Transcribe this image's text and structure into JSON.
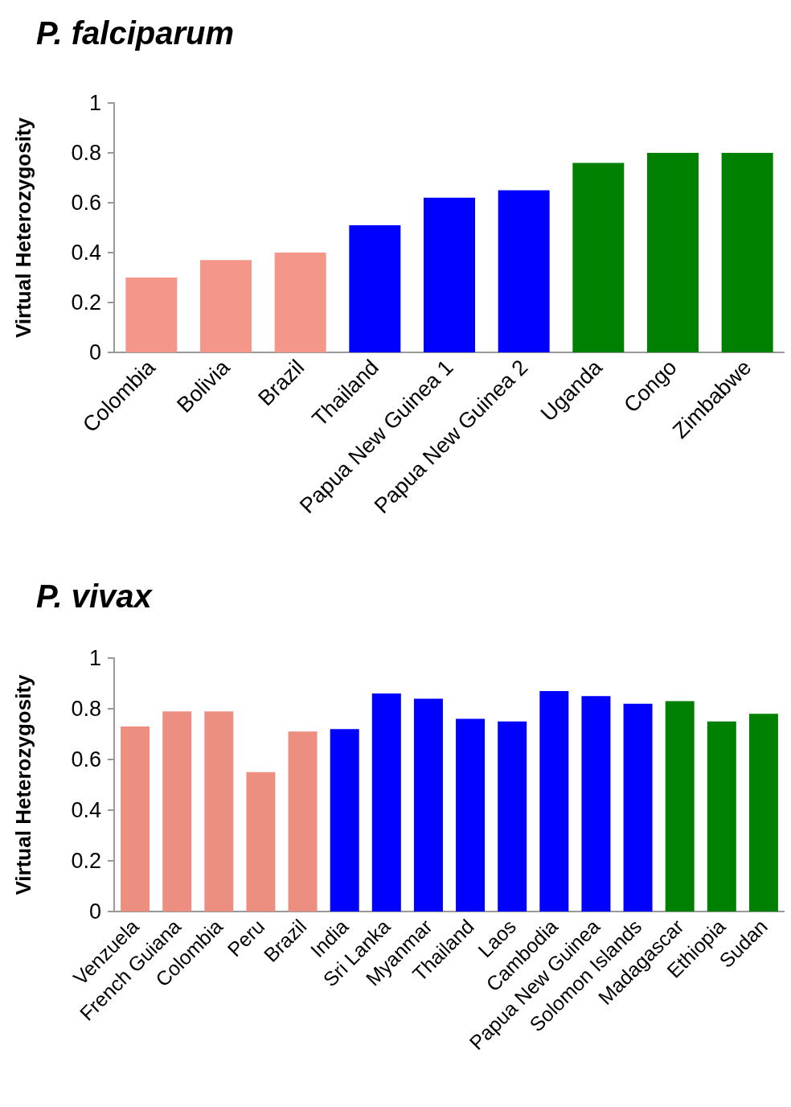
{
  "chart_data": [
    {
      "type": "bar",
      "title": "P. falciparum",
      "ylabel": "Virtual Heterozygosity",
      "categories": [
        "Colombia",
        "Bolivia",
        "Brazil",
        "Thailand",
        "Papua New Guinea 1",
        "Papua New Guinea 2",
        "Uganda",
        "Congo",
        "Zimbabwe"
      ],
      "values": [
        0.3,
        0.37,
        0.4,
        0.51,
        0.62,
        0.65,
        0.76,
        0.8,
        0.8
      ],
      "colors": [
        "#f4978a",
        "#f4978a",
        "#f4978a",
        "#0000ff",
        "#0000ff",
        "#0000ff",
        "#008000",
        "#008000",
        "#008000"
      ],
      "ylim": [
        0,
        1
      ],
      "yticks": [
        0,
        0.2,
        0.4,
        0.6,
        0.8,
        1
      ]
    },
    {
      "type": "bar",
      "title": "P. vivax",
      "ylabel": "Virtual Heterozygosity",
      "categories": [
        "Venzuela",
        "French Guiana",
        "Colombia",
        "Peru",
        "Brazil",
        "India",
        "Sri Lanka",
        "Myanmar",
        "Thailand",
        "Laos",
        "Cambodia",
        "Papua New Guinea",
        "Solomon Islands",
        "Madagascar",
        "Ethiopia",
        "Sudan"
      ],
      "values": [
        0.73,
        0.79,
        0.79,
        0.55,
        0.71,
        0.72,
        0.86,
        0.84,
        0.76,
        0.75,
        0.87,
        0.85,
        0.82,
        0.83,
        0.75,
        0.78
      ],
      "colors": [
        "#ec8f80",
        "#ec8f80",
        "#ec8f80",
        "#ec8f80",
        "#ec8f80",
        "#0000ff",
        "#0000ff",
        "#0000ff",
        "#0000ff",
        "#0000ff",
        "#0000ff",
        "#0000ff",
        "#0000ff",
        "#008000",
        "#008000",
        "#008000"
      ],
      "ylim": [
        0,
        1
      ],
      "yticks": [
        0,
        0.2,
        0.4,
        0.6,
        0.8,
        1
      ]
    }
  ]
}
